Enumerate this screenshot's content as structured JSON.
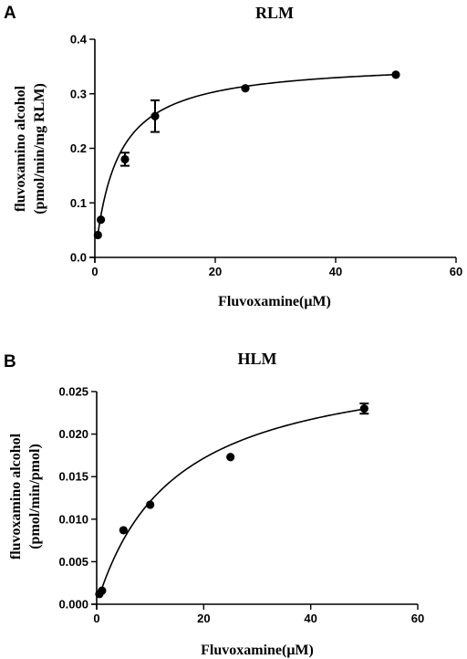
{
  "chart_data": [
    {
      "panel": "A",
      "type": "scatter",
      "title": "RLM",
      "xlabel": "Fluvoxamine(μM)",
      "ylabel_lines": [
        "fluvoxamino alcohol",
        "(pmol/min/mg RLM)"
      ],
      "xlim": [
        0,
        60
      ],
      "ylim": [
        0,
        0.4
      ],
      "xticks": [
        0,
        20,
        40,
        60
      ],
      "yticks": [
        0.0,
        0.1,
        0.2,
        0.3,
        0.4
      ],
      "xtick_labels": [
        "0",
        "20",
        "40",
        "60"
      ],
      "ytick_labels": [
        "0.0",
        "0.1",
        "0.2",
        "0.3",
        "0.4"
      ],
      "points": [
        {
          "x": 0.5,
          "y": 0.041,
          "err": 0
        },
        {
          "x": 1,
          "y": 0.069,
          "err": 0
        },
        {
          "x": 5,
          "y": 0.18,
          "err": 0.012
        },
        {
          "x": 10,
          "y": 0.259,
          "err": 0.029
        },
        {
          "x": 25,
          "y": 0.31,
          "err": 0
        },
        {
          "x": 50,
          "y": 0.335,
          "err": 0
        }
      ],
      "fit": {
        "model": "michaelis-menten",
        "vmax": 0.36,
        "km": 3.7
      }
    },
    {
      "panel": "B",
      "type": "scatter",
      "title": "HLM",
      "xlabel": "Fluvoxamine(μM)",
      "ylabel_lines": [
        "fluvoxamino alcohol",
        "(pmol/min/pmol)"
      ],
      "xlim": [
        0,
        60
      ],
      "ylim": [
        0,
        0.025
      ],
      "xticks": [
        0,
        20,
        40,
        60
      ],
      "yticks": [
        0.0,
        0.005,
        0.01,
        0.015,
        0.02,
        0.025
      ],
      "xtick_labels": [
        "0",
        "20",
        "40",
        "60"
      ],
      "ytick_labels": [
        "0.000",
        "0.005",
        "0.010",
        "0.015",
        "0.020",
        "0.025"
      ],
      "points": [
        {
          "x": 0.5,
          "y": 0.0012,
          "err": 0
        },
        {
          "x": 1,
          "y": 0.0016,
          "err": 0
        },
        {
          "x": 5,
          "y": 0.0087,
          "err": 0
        },
        {
          "x": 10,
          "y": 0.0117,
          "err": 0
        },
        {
          "x": 25,
          "y": 0.0173,
          "err": 0
        },
        {
          "x": 50,
          "y": 0.023,
          "err": 0.0006
        }
      ],
      "fit": {
        "model": "michaelis-menten",
        "vmax": 0.0296,
        "km": 14.5
      }
    }
  ]
}
